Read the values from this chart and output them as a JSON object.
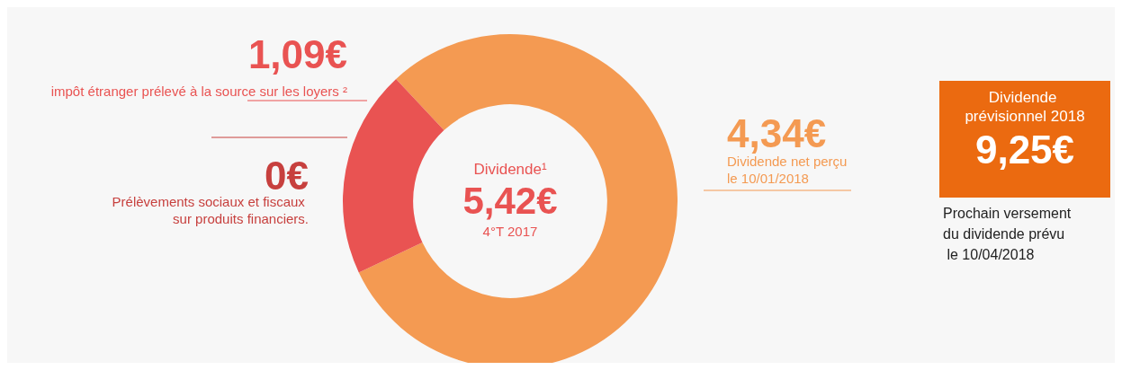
{
  "chart_data": {
    "type": "donut",
    "title": "Dividende¹",
    "categories": [
      "Dividende net perçu le 10/01/2018",
      "Prélèvements sociaux et fiscaux sur produits financiers.",
      "impôt étranger prélevé à la source sur les loyers ²"
    ],
    "values": [
      4.34,
      0,
      1.09
    ],
    "value_labels": [
      "4,34€",
      "0€",
      "1,09€"
    ],
    "colors": [
      "#f49a52",
      "#c7403e",
      "#e95352"
    ],
    "annotations": [
      "5,42€",
      "4°T 2017",
      "Dividende prévisionnel 2018",
      "9,25€",
      "Prochain versement du dividende prévu le 10/04/2018"
    ],
    "legend": false
  }
}
